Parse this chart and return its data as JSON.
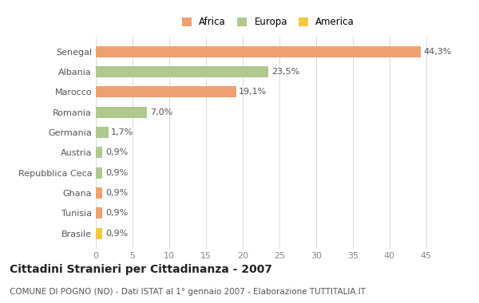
{
  "categories": [
    "Brasile",
    "Tunisia",
    "Ghana",
    "Repubblica Ceca",
    "Austria",
    "Germania",
    "Romania",
    "Marocco",
    "Albania",
    "Senegal"
  ],
  "values": [
    0.9,
    0.9,
    0.9,
    0.9,
    0.9,
    1.7,
    7.0,
    19.1,
    23.5,
    44.3
  ],
  "labels": [
    "0,9%",
    "0,9%",
    "0,9%",
    "0,9%",
    "0,9%",
    "1,7%",
    "7,0%",
    "19,1%",
    "23,5%",
    "44,3%"
  ],
  "colors": [
    "#f5c842",
    "#f0a070",
    "#f0a070",
    "#b0c890",
    "#b0c890",
    "#b0c890",
    "#b0c890",
    "#f0a070",
    "#b0c890",
    "#f0a070"
  ],
  "legend_labels": [
    "Africa",
    "Europa",
    "America"
  ],
  "legend_colors": [
    "#f0a070",
    "#b0c890",
    "#f5c842"
  ],
  "title": "Cittadini Stranieri per Cittadinanza - 2007",
  "subtitle": "COMUNE DI POGNO (NO) - Dati ISTAT al 1° gennaio 2007 - Elaborazione TUTTITALIA.IT",
  "xlim": [
    0,
    47
  ],
  "xticks": [
    0,
    5,
    10,
    15,
    20,
    25,
    30,
    35,
    40,
    45
  ],
  "bg_color": "#ffffff",
  "bar_height": 0.55,
  "label_fontsize": 8,
  "title_fontsize": 10,
  "subtitle_fontsize": 7.5,
  "ytick_fontsize": 8,
  "xtick_fontsize": 8
}
